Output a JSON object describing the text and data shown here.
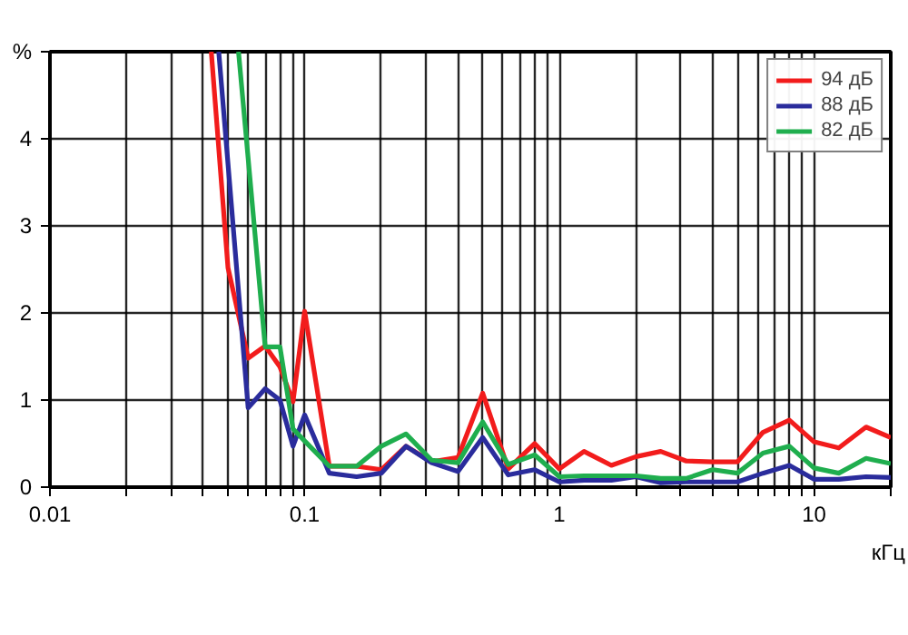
{
  "chart_data": {
    "type": "line",
    "xlabel": "кГц",
    "log": "x",
    "grid": true,
    "legend": "top right",
    "marker": "none",
    "line_style": "solid",
    "xlim": [
      0.01,
      20
    ],
    "ylim": [
      0,
      5
    ],
    "xticks": [
      0.01,
      {
        "value": 0.02,
        "label": null
      },
      {
        "value": 0.03,
        "label": null
      },
      {
        "value": 0.04,
        "label": null
      },
      {
        "value": 0.05,
        "label": null
      },
      {
        "value": 0.06,
        "label": null
      },
      {
        "value": 0.07,
        "label": null
      },
      {
        "value": 0.08,
        "label": null
      },
      {
        "value": 0.09,
        "label": null
      },
      0.1,
      {
        "value": 0.2,
        "label": null
      },
      {
        "value": 0.3,
        "label": null
      },
      {
        "value": 0.4,
        "label": null
      },
      {
        "value": 0.5,
        "label": null
      },
      {
        "value": 0.6,
        "label": null
      },
      {
        "value": 0.7,
        "label": null
      },
      {
        "value": 0.8,
        "label": null
      },
      {
        "value": 0.9,
        "label": null
      },
      1,
      {
        "value": 2,
        "label": null
      },
      {
        "value": 3,
        "label": null
      },
      {
        "value": 4,
        "label": null
      },
      {
        "value": 5,
        "label": null
      },
      {
        "value": 6,
        "label": null
      },
      {
        "value": 7,
        "label": null
      },
      {
        "value": 8,
        "label": null
      },
      {
        "value": 9,
        "label": null
      },
      10,
      {
        "value": 20,
        "label": null
      }
    ],
    "yticks": [
      0,
      1,
      2,
      3,
      4,
      {
        "value": 5,
        "label": "%"
      }
    ],
    "series": [
      {
        "name": "94 дБ",
        "color": "#f21c1c",
        "x": [
          0.043,
          0.05,
          0.06,
          0.07,
          0.08,
          0.09,
          0.1,
          0.125,
          0.16,
          0.2,
          0.25,
          0.315,
          0.4,
          0.5,
          0.63,
          0.8,
          1,
          1.25,
          1.6,
          2,
          2.5,
          3.15,
          4,
          5,
          6.3,
          8,
          10,
          12.5,
          16,
          20
        ],
        "values": [
          5,
          2.52,
          1.48,
          1.62,
          1.38,
          0.98,
          2.02,
          0.24,
          0.24,
          0.2,
          0.47,
          0.29,
          0.34,
          1.08,
          0.21,
          0.5,
          0.21,
          0.41,
          0.25,
          0.35,
          0.41,
          0.3,
          0.29,
          0.29,
          0.63,
          0.77,
          0.52,
          0.45,
          0.69,
          0.57
        ]
      },
      {
        "name": "88 дБ",
        "color": "#2a2c9c",
        "x": [
          0.046,
          0.06,
          0.07,
          0.08,
          0.09,
          0.1,
          0.125,
          0.16,
          0.2,
          0.25,
          0.315,
          0.4,
          0.5,
          0.63,
          0.8,
          1,
          1.25,
          1.6,
          2,
          2.5,
          3.15,
          4,
          5,
          6.3,
          8,
          10,
          12.5,
          16,
          20
        ],
        "values": [
          5,
          0.91,
          1.13,
          1.0,
          0.47,
          0.83,
          0.16,
          0.12,
          0.16,
          0.47,
          0.28,
          0.18,
          0.57,
          0.14,
          0.2,
          0.06,
          0.08,
          0.08,
          0.12,
          0.05,
          0.06,
          0.06,
          0.06,
          0.16,
          0.25,
          0.09,
          0.09,
          0.12,
          0.11
        ]
      },
      {
        "name": "82 дБ",
        "color": "#1fae4e",
        "x": [
          0.055,
          0.07,
          0.08,
          0.09,
          0.1,
          0.125,
          0.16,
          0.2,
          0.25,
          0.315,
          0.4,
          0.5,
          0.63,
          0.8,
          1,
          1.25,
          1.6,
          2,
          2.5,
          3.15,
          4,
          5,
          6.3,
          8,
          10,
          12.5,
          16,
          20
        ],
        "values": [
          5,
          1.61,
          1.61,
          0.67,
          0.53,
          0.24,
          0.24,
          0.47,
          0.61,
          0.31,
          0.28,
          0.75,
          0.26,
          0.37,
          0.12,
          0.13,
          0.13,
          0.13,
          0.1,
          0.1,
          0.2,
          0.16,
          0.39,
          0.47,
          0.22,
          0.16,
          0.33,
          0.27
        ]
      }
    ]
  }
}
